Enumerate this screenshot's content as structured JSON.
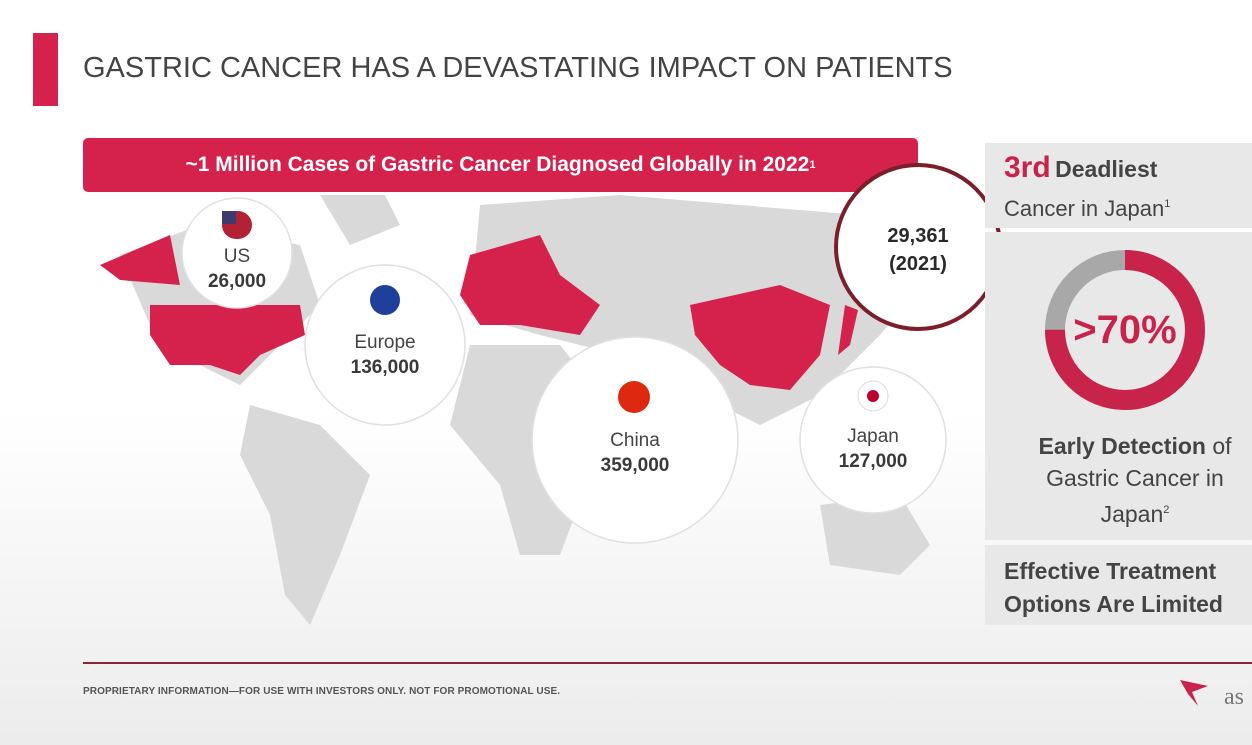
{
  "title": "GASTRIC CANCER HAS A DEVASTATING IMPACT ON PATIENTS",
  "banner": {
    "text": "~1 Million Cases of Gastric Cancer Diagnosed Globally in 2022",
    "footnote": "1"
  },
  "regions": [
    {
      "name": "US",
      "value": "26,000"
    },
    {
      "name": "Europe",
      "value": "136,000"
    },
    {
      "name": "China",
      "value": "359,000"
    },
    {
      "name": "Japan",
      "value": "127,000"
    }
  ],
  "callout": {
    "value": "29,361",
    "year": "(2021)"
  },
  "side_panel": {
    "rank": {
      "ordinal": "3rd",
      "label": "Deadliest",
      "subtitle": "Cancer in Japan",
      "footnote": "1"
    },
    "detection": {
      "value": ">70%",
      "label_bold": "Early Detection",
      "label_rest": "of Gastric Cancer in Japan",
      "footnote": "2"
    },
    "treatment": "Effective Treatment Options Are Limited"
  },
  "footer": "PROPRIETARY INFORMATION—FOR USE WITH INVESTORS ONLY. NOT FOR PROMOTIONAL USE.",
  "logo": "as"
}
